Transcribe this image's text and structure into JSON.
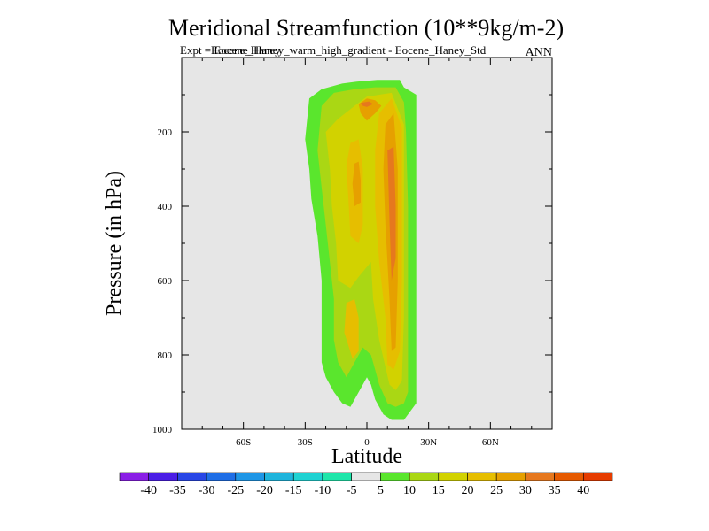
{
  "chart_data": {
    "type": "contour",
    "title": "Meridional Streamfunction (10**9kg/m-2)",
    "subtitle_left": "Expt = Eocene_Haney_warm_high_gradient - Eocene_Haney_Std",
    "subtitle_overlap": "Eocene_Haney",
    "subtitle_right": "ANN",
    "xlabel": "Latitude",
    "ylabel": "Pressure (in hPa)",
    "xlim": [
      -90,
      90
    ],
    "ylim": [
      1000,
      0
    ],
    "x_ticks": [
      {
        "value": -60,
        "label": "60S"
      },
      {
        "value": -30,
        "label": "30S"
      },
      {
        "value": 0,
        "label": "0"
      },
      {
        "value": 30,
        "label": "30N"
      },
      {
        "value": 60,
        "label": "60N"
      }
    ],
    "y_ticks": [
      {
        "value": 200,
        "label": "200"
      },
      {
        "value": 400,
        "label": "400"
      },
      {
        "value": 600,
        "label": "600"
      },
      {
        "value": 800,
        "label": "800"
      },
      {
        "value": 1000,
        "label": "1000"
      }
    ],
    "background_color": "#e6e6e6",
    "colorbar": {
      "levels": [
        "-40",
        "-35",
        "-30",
        "-25",
        "-20",
        "-15",
        "-10",
        "-5",
        "5",
        "10",
        "15",
        "20",
        "25",
        "30",
        "35",
        "40"
      ],
      "colors": [
        "#8a1ee6",
        "#4b1ee6",
        "#2846e6",
        "#1e6ee6",
        "#1e96e6",
        "#1eb4dc",
        "#1ed2d2",
        "#1ee6aa",
        "#e6e6e6",
        "#5ae62d",
        "#aad714",
        "#d2d200",
        "#e6be00",
        "#e6a000",
        "#e6781e",
        "#e65a00",
        "#e63c00"
      ]
    },
    "contours": [
      {
        "level": 5,
        "color": "#5ae62d",
        "points": [
          [
            -28,
            110
          ],
          [
            -22,
            85
          ],
          [
            -12,
            70
          ],
          [
            -5,
            65
          ],
          [
            5,
            60
          ],
          [
            16,
            60
          ],
          [
            18,
            80
          ],
          [
            24,
            100
          ],
          [
            24,
            350
          ],
          [
            24,
            600
          ],
          [
            24,
            800
          ],
          [
            24,
            930
          ],
          [
            20,
            960
          ],
          [
            18,
            975
          ],
          [
            12,
            975
          ],
          [
            8,
            960
          ],
          [
            4,
            920
          ],
          [
            2,
            880
          ],
          [
            0,
            860
          ],
          [
            -2,
            880
          ],
          [
            -6,
            920
          ],
          [
            -8,
            940
          ],
          [
            -12,
            930
          ],
          [
            -16,
            900
          ],
          [
            -20,
            860
          ],
          [
            -22,
            820
          ],
          [
            -22,
            720
          ],
          [
            -22,
            600
          ],
          [
            -24,
            480
          ],
          [
            -27,
            380
          ],
          [
            -28,
            300
          ],
          [
            -30,
            220
          ]
        ]
      },
      {
        "level": 10,
        "color": "#aad714",
        "points": [
          [
            -22,
            130
          ],
          [
            -16,
            95
          ],
          [
            -6,
            85
          ],
          [
            4,
            80
          ],
          [
            14,
            80
          ],
          [
            18,
            120
          ],
          [
            19,
            200
          ],
          [
            20,
            400
          ],
          [
            20,
            600
          ],
          [
            20,
            800
          ],
          [
            20,
            900
          ],
          [
            18,
            930
          ],
          [
            14,
            940
          ],
          [
            10,
            930
          ],
          [
            6,
            880
          ],
          [
            4,
            840
          ],
          [
            2,
            800
          ],
          [
            -2,
            780
          ],
          [
            -6,
            820
          ],
          [
            -10,
            860
          ],
          [
            -14,
            820
          ],
          [
            -16,
            760
          ],
          [
            -16,
            650
          ],
          [
            -18,
            550
          ],
          [
            -20,
            450
          ],
          [
            -22,
            350
          ],
          [
            -24,
            250
          ]
        ]
      },
      {
        "level": 15,
        "color": "#d2d200",
        "points": [
          [
            -20,
            200
          ],
          [
            -14,
            165
          ],
          [
            -6,
            130
          ],
          [
            0,
            105
          ],
          [
            12,
            95
          ],
          [
            18,
            180
          ],
          [
            18,
            400
          ],
          [
            18,
            700
          ],
          [
            17,
            870
          ],
          [
            14,
            895
          ],
          [
            11,
            880
          ],
          [
            6,
            760
          ],
          [
            3,
            650
          ],
          [
            2,
            550
          ],
          [
            -4,
            590
          ],
          [
            -8,
            620
          ],
          [
            -14,
            600
          ],
          [
            -15,
            500
          ],
          [
            -17,
            400
          ],
          [
            -18,
            300
          ]
        ]
      },
      {
        "level": 20,
        "color": "#e6be00",
        "points": [
          [
            -8,
            230
          ],
          [
            -4,
            220
          ],
          [
            -2,
            300
          ],
          [
            -2,
            450
          ],
          [
            -4,
            500
          ],
          [
            -8,
            480
          ],
          [
            -9,
            380
          ],
          [
            -10,
            290
          ]
        ]
      },
      {
        "level": 20,
        "color": "#e6be00",
        "points": [
          [
            6,
            150
          ],
          [
            12,
            110
          ],
          [
            17,
            190
          ],
          [
            17,
            350
          ],
          [
            17,
            600
          ],
          [
            16,
            790
          ],
          [
            13,
            840
          ],
          [
            10,
            825
          ],
          [
            9,
            700
          ],
          [
            6,
            550
          ],
          [
            4,
            400
          ],
          [
            4,
            250
          ]
        ]
      },
      {
        "level": 20,
        "color": "#e6be00",
        "points": [
          [
            -10,
            660
          ],
          [
            -6,
            650
          ],
          [
            -4,
            700
          ],
          [
            -4,
            790
          ],
          [
            -7,
            810
          ],
          [
            -11,
            740
          ]
        ]
      },
      {
        "level": 25,
        "color": "#e6a000",
        "points": [
          [
            -4,
            125
          ],
          [
            0,
            110
          ],
          [
            4,
            115
          ],
          [
            7,
            130
          ],
          [
            4,
            150
          ],
          [
            0,
            170
          ],
          [
            -3,
            150
          ]
        ]
      },
      {
        "level": 25,
        "color": "#e6a000",
        "points": [
          [
            -6,
            285
          ],
          [
            -4,
            280
          ],
          [
            -3,
            330
          ],
          [
            -3,
            390
          ],
          [
            -6,
            400
          ],
          [
            -7,
            340
          ]
        ]
      },
      {
        "level": 25,
        "color": "#e6a000",
        "points": [
          [
            9,
            180
          ],
          [
            13,
            150
          ],
          [
            15,
            300
          ],
          [
            15,
            600
          ],
          [
            14,
            780
          ],
          [
            12,
            790
          ],
          [
            11,
            650
          ],
          [
            9,
            450
          ],
          [
            8,
            300
          ]
        ]
      },
      {
        "level": 30,
        "color": "#e6781e",
        "points": [
          [
            10,
            250
          ],
          [
            13,
            240
          ],
          [
            14,
            400
          ],
          [
            14,
            540
          ],
          [
            12,
            600
          ],
          [
            11,
            440
          ]
        ]
      },
      {
        "level": 30,
        "color": "#e6781e",
        "points": [
          [
            -3,
            122
          ],
          [
            1,
            118
          ],
          [
            3,
            125
          ],
          [
            0,
            133
          ],
          [
            -2,
            130
          ]
        ]
      }
    ]
  }
}
